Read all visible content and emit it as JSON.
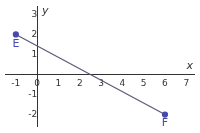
{
  "chart_data": {
    "type": "line",
    "x_label": "x",
    "y_label": "y",
    "x": [
      -1,
      6
    ],
    "values": [
      2,
      -2
    ],
    "color": "#4848b0",
    "marker": "circle",
    "annotations": [
      {
        "text": "E",
        "x": -1,
        "y": 2
      },
      {
        "text": "F",
        "x": 6,
        "y": -2
      }
    ],
    "xlim": [
      -1.5,
      7.4
    ],
    "xticks": [
      -1,
      0,
      1,
      2,
      3,
      4,
      5,
      6,
      7
    ],
    "ylim": [
      -2.6,
      3.4
    ],
    "yticks": [
      -2,
      -1,
      1,
      2,
      3
    ],
    "grid": false
  }
}
